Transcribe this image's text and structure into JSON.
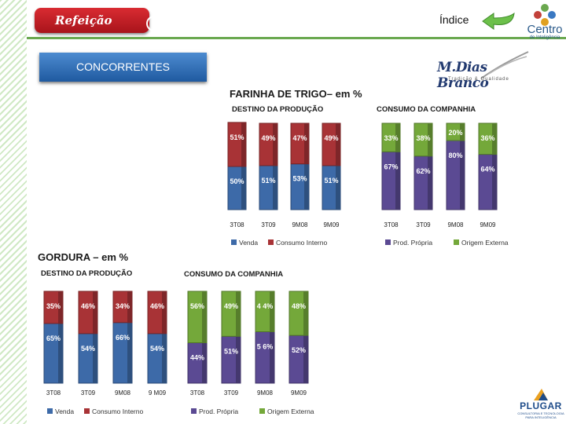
{
  "header": {
    "brand": "Refeição",
    "index_label": "Índice",
    "centro_title": "Centro",
    "centro_sub": "de Inteligência",
    "section_title": "CONCORRENTES",
    "company_logo": "M.Dias Branco",
    "company_tagline": "Tradição & Qualidade",
    "footer_logo": "PLUGAR",
    "footer_logo_sub": "CONSULTORIA E TECNOLOGIA PARA INTELIGÊNCIA"
  },
  "icons": {
    "index_arrow": "back-arrow-icon",
    "centro_logo": "flower-icon",
    "plugar_mark": "triangle-mark-icon"
  },
  "colors": {
    "venda": "#3d6aa8",
    "consumo_interno": "#a83336",
    "prod_propria": "#5b4a93",
    "origem_externa": "#74a83a",
    "accent": "#6aa84f"
  },
  "chart_data": [
    {
      "type": "bar",
      "stacked": true,
      "group_title": "FARINHA DE TRIGO– em %",
      "title": "DESTINO DA PRODUÇÃO",
      "categories": [
        "3T08",
        "3T09",
        "9M08",
        "9M09"
      ],
      "series": [
        {
          "name": "Venda",
          "values": [
            50,
            51,
            53,
            51
          ],
          "labels": [
            "50%",
            "51%",
            "53%",
            "51%"
          ]
        },
        {
          "name": "Consumo Interno",
          "values": [
            51,
            49,
            47,
            49
          ],
          "labels": [
            "51%",
            "49%",
            "47%",
            "49%"
          ]
        }
      ],
      "ylim": [
        0,
        100
      ]
    },
    {
      "type": "bar",
      "stacked": true,
      "title": "CONSUMO DA COMPANHIA",
      "categories": [
        "3T08",
        "3T09",
        "9M08",
        "9M09"
      ],
      "series": [
        {
          "name": "Prod. Própria",
          "values": [
            67,
            62,
            80,
            64
          ],
          "labels": [
            "67%",
            "62%",
            "80%",
            "64%"
          ]
        },
        {
          "name": "Origem Externa",
          "values": [
            33,
            38,
            20,
            36
          ],
          "labels": [
            "33%",
            "38%",
            "20%",
            "36%"
          ]
        }
      ],
      "ylim": [
        0,
        100
      ]
    },
    {
      "type": "bar",
      "stacked": true,
      "group_title": "GORDURA – em %",
      "title": "DESTINO DA PRODUÇÃO",
      "categories": [
        "3T08",
        "3T09",
        "9M08",
        "9 M09"
      ],
      "series": [
        {
          "name": "Venda",
          "values": [
            65,
            54,
            66,
            54
          ],
          "labels": [
            "65%",
            "54%",
            "66%",
            "54%"
          ]
        },
        {
          "name": "Consumo Interno",
          "values": [
            35,
            46,
            34,
            46
          ],
          "labels": [
            "35%",
            "46%",
            "34%",
            "46%"
          ]
        }
      ],
      "ylim": [
        0,
        100
      ]
    },
    {
      "type": "bar",
      "stacked": true,
      "title": "CONSUMO DA COMPANHIA",
      "categories": [
        "3T08",
        "3T09",
        "9M08",
        "9M09"
      ],
      "series": [
        {
          "name": "Prod. Própria",
          "values": [
            44,
            51,
            56,
            52
          ],
          "labels": [
            "44%",
            "51%",
            "5 6%",
            "52%"
          ]
        },
        {
          "name": "Origem Externa",
          "values": [
            56,
            49,
            44,
            48
          ],
          "labels": [
            "56%",
            "49%",
            "4 4%",
            "48%"
          ]
        }
      ],
      "ylim": [
        0,
        100
      ]
    }
  ]
}
